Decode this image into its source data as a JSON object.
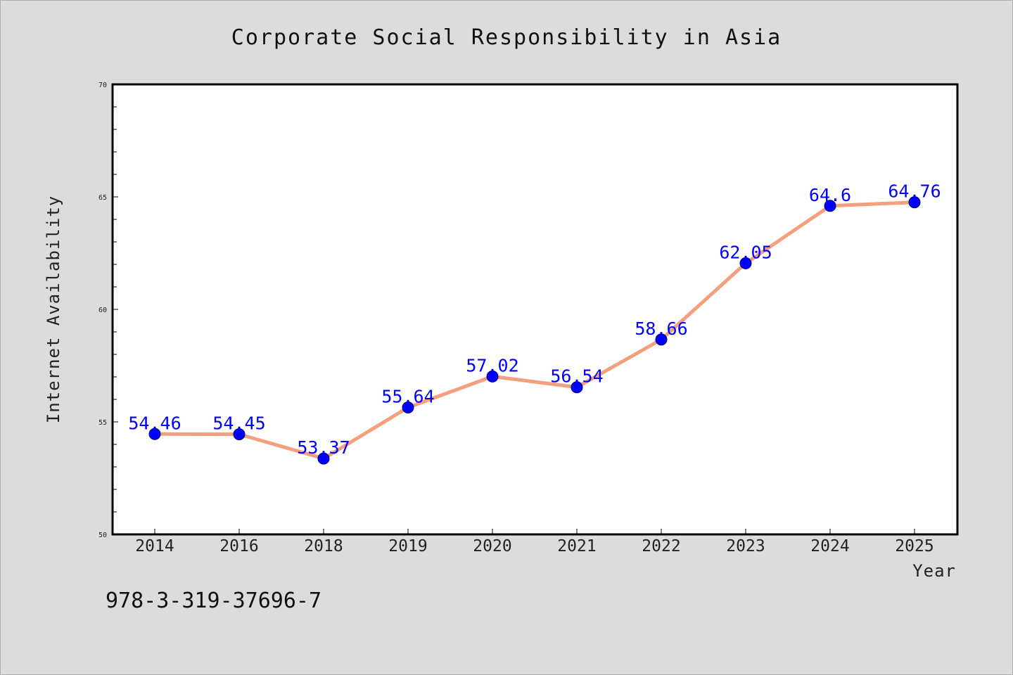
{
  "chart_data": {
    "type": "line",
    "title": "Corporate Social Responsibility in Asia",
    "xlabel": "Year",
    "ylabel": "Internet Availability",
    "categories": [
      "2014",
      "2016",
      "2018",
      "2019",
      "2020",
      "2021",
      "2022",
      "2023",
      "2024",
      "2025"
    ],
    "values": [
      54.46,
      54.45,
      53.37,
      55.64,
      57.02,
      56.54,
      58.66,
      62.05,
      64.6,
      64.76
    ],
    "data_labels": [
      "54.46",
      "54.45",
      "53.37",
      "55.64",
      "57.02",
      "56.54",
      "58.66",
      "62.05",
      "64.6",
      "64.76"
    ],
    "ylim": [
      50,
      70
    ],
    "yticks": [
      "50",
      "55",
      "60",
      "65",
      "70"
    ],
    "grid": false,
    "legend": "none",
    "line_color": "#f4a07f",
    "marker_color": "#0000ff",
    "label_color": "#0000ff",
    "plot_background": "#ffffff",
    "figure_background": "#dcdcdc"
  },
  "footer": {
    "isbn": "978-3-319-37696-7"
  }
}
